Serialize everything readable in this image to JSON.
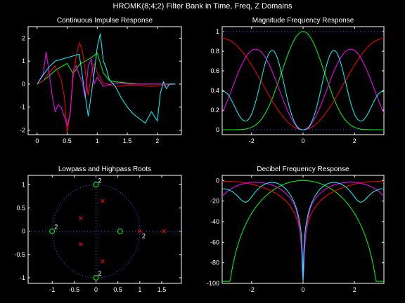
{
  "figure": {
    "title": "HROMK(8;4;2) Filter Bank in Time, Freq, Z Domains",
    "background": "#000000",
    "axis_color": "#ffffff"
  },
  "chart_data": [
    {
      "id": "impulse",
      "type": "line",
      "title": "Continuous Impulse Response",
      "xlabel": "",
      "ylabel": "",
      "xlim": [
        -0.15,
        2.4
      ],
      "ylim": [
        -2.2,
        2.5
      ],
      "xticks": [
        0,
        0.5,
        1,
        1.5,
        2
      ],
      "yticks": [
        -2,
        -1,
        0,
        1,
        2
      ],
      "grid": false,
      "series": [
        {
          "color": "#00ff00",
          "x": [
            0,
            0.1,
            0.2,
            0.3,
            0.4,
            0.5,
            0.6,
            0.7,
            0.8,
            0.9,
            1.0,
            1.1,
            1.2,
            1.3,
            1.5,
            1.7,
            1.9,
            2.1,
            2.3
          ],
          "y": [
            0,
            0.15,
            0.35,
            0.6,
            0.75,
            0.9,
            0.45,
            0.85,
            1.0,
            1.15,
            1.35,
            0.5,
            0.15,
            0.1,
            0.05,
            0.0,
            0.0,
            0.0,
            0.0
          ]
        },
        {
          "color": "#ff0000",
          "x": [
            0,
            0.1,
            0.2,
            0.3,
            0.4,
            0.45,
            0.5,
            0.55,
            0.6,
            0.65,
            0.7,
            0.75,
            0.8,
            0.85,
            0.9,
            0.95,
            1.0,
            1.1,
            1.3,
            1.5,
            1.7,
            1.9,
            2.1,
            2.3
          ],
          "y": [
            0,
            0.15,
            0.5,
            0.8,
            0.2,
            -0.5,
            -2.1,
            -1.2,
            0.3,
            1.2,
            1.8,
            1.5,
            0.6,
            -0.5,
            0.4,
            0.9,
            0.5,
            0.05,
            -0.1,
            -0.05,
            -0.05,
            -0.1,
            -0.05,
            0.0
          ]
        },
        {
          "color": "#ff00ff",
          "x": [
            0,
            0.1,
            0.15,
            0.2,
            0.25,
            0.3,
            0.35,
            0.4,
            0.45,
            0.5,
            0.55,
            0.6,
            0.65,
            0.7,
            0.75,
            0.8,
            0.85,
            0.9,
            0.95,
            1.0,
            1.1,
            1.3,
            1.5,
            1.7,
            1.9,
            2.1,
            2.3
          ],
          "y": [
            0,
            0.45,
            1.4,
            0.5,
            -0.5,
            -1.2,
            -0.9,
            -1.0,
            -1.4,
            -1.8,
            -1.3,
            0.6,
            0.8,
            0.4,
            0.1,
            -0.6,
            0.8,
            1.1,
            0.0,
            0.3,
            -0.1,
            0.05,
            0.0,
            0.0,
            0.0,
            0.0,
            0.0
          ]
        },
        {
          "color": "#00ffff",
          "x": [
            0,
            0.1,
            0.2,
            0.3,
            0.5,
            0.7,
            0.85,
            0.95,
            1.0,
            1.05,
            1.1,
            1.15,
            1.2,
            1.3,
            1.4,
            1.5,
            1.6,
            1.7,
            1.8,
            1.9,
            2.0,
            2.05,
            2.1,
            2.15,
            2.2,
            2.3
          ],
          "y": [
            0,
            0.4,
            0.75,
            1.0,
            1.15,
            1.3,
            -1.4,
            0.5,
            1.6,
            2.2,
            1.0,
            0.7,
            0.2,
            -0.1,
            -0.6,
            -1.0,
            -1.3,
            -1.5,
            -1.7,
            -1.2,
            -1.6,
            -0.4,
            0.1,
            -0.2,
            0.0,
            0.0
          ]
        }
      ]
    },
    {
      "id": "magnitude",
      "type": "line",
      "title": "Magnitude Frequency Response",
      "xlabel": "",
      "ylabel": "",
      "xlim": [
        -3.14159,
        3.14159
      ],
      "ylim": [
        -0.05,
        1.05
      ],
      "xticks": [
        -2,
        0,
        2
      ],
      "yticks": [
        0,
        0.2,
        0.4,
        0.6,
        0.8,
        1
      ],
      "grid": false,
      "ref_lines": [
        {
          "y": 1,
          "color": "#3355ff"
        },
        {
          "y": 0,
          "color": "#3355ff"
        }
      ],
      "series": [
        {
          "color": "#00ff00",
          "freq_center": 0,
          "shape": "lowpass"
        },
        {
          "color": "#ff0000",
          "freq_center": 3.14159,
          "shape": "highpass"
        },
        {
          "color": "#ff00ff",
          "freq_center": 1.9,
          "shape": "bandpass"
        },
        {
          "color": "#00ffff",
          "freq_center": 1.1,
          "shape": "bandpass"
        }
      ]
    },
    {
      "id": "roots",
      "type": "scatter",
      "title": "Lowpass and Highpass Roots",
      "xlabel": "",
      "ylabel": "",
      "xlim": [
        -1.55,
        1.95
      ],
      "ylim": [
        -1.12,
        1.2
      ],
      "xticks": [
        -1,
        -0.5,
        0,
        0.5,
        1,
        1.5
      ],
      "yticks": [
        -1,
        -0.5,
        0,
        0.5,
        1
      ],
      "grid": false,
      "unit_circle_color": "#3355ff",
      "zeros": {
        "color": "#00ff00",
        "marker": "o",
        "points": [
          {
            "x": -1,
            "y": 0,
            "mult": "2"
          },
          {
            "x": 0,
            "y": 1,
            "mult": "2"
          },
          {
            "x": 0,
            "y": -1,
            "mult": "2"
          },
          {
            "x": 0.55,
            "y": 0,
            "mult": ""
          }
        ]
      },
      "poles": {
        "color": "#ff0000",
        "marker": "x",
        "points": [
          {
            "x": -0.35,
            "y": 0.28,
            "mult": ""
          },
          {
            "x": -0.35,
            "y": -0.28,
            "mult": ""
          },
          {
            "x": 0.15,
            "y": 0.65,
            "mult": ""
          },
          {
            "x": 0.15,
            "y": -0.65,
            "mult": ""
          },
          {
            "x": 1.0,
            "y": 0,
            "mult": "2"
          },
          {
            "x": 1.55,
            "y": 0,
            "mult": ""
          }
        ]
      }
    },
    {
      "id": "decibel",
      "type": "line",
      "title": "Decibel Frequency Response",
      "xlabel": "",
      "ylabel": "",
      "xlim": [
        -3.14159,
        3.14159
      ],
      "ylim": [
        -100,
        5
      ],
      "xticks": [
        -2,
        0,
        2
      ],
      "yticks": [
        0,
        -20,
        -40,
        -60,
        -80,
        -100
      ],
      "grid": false,
      "series": [
        {
          "color": "#00ff00"
        },
        {
          "color": "#ff0000"
        },
        {
          "color": "#ff00ff"
        },
        {
          "color": "#00ffff"
        }
      ]
    }
  ]
}
